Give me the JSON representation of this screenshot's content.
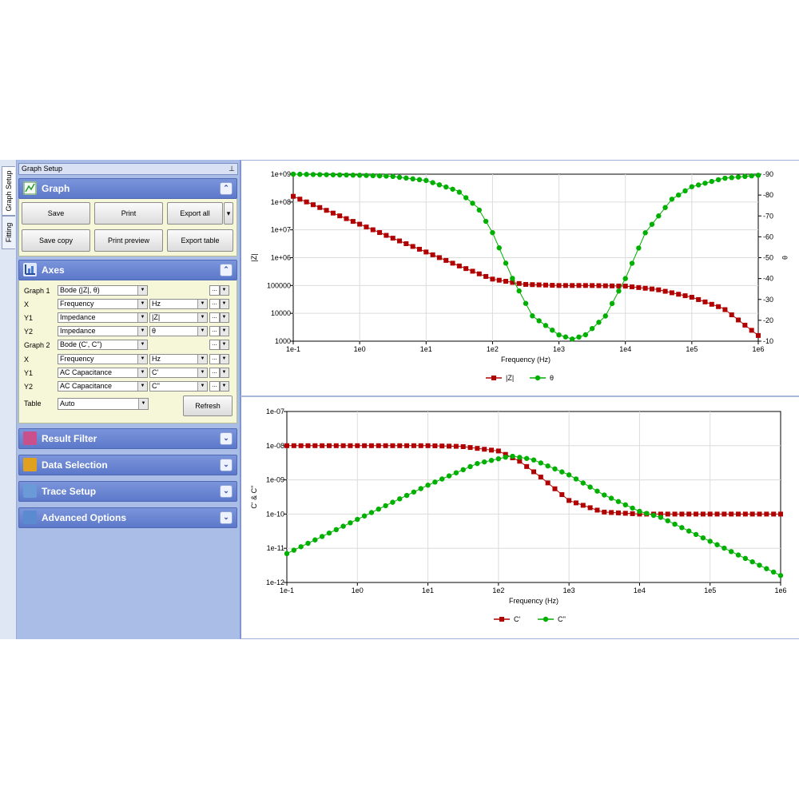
{
  "side_tabs": [
    "Graph Setup",
    "Fitting"
  ],
  "panel_title": "Graph Setup",
  "pin_glyph": "⊥",
  "graph_section": {
    "title": "Graph",
    "icon": "graph-icon",
    "buttons": [
      "Save",
      "Print",
      "Export all",
      "Save copy",
      "Print preview",
      "Export table"
    ]
  },
  "axes_section": {
    "title": "Axes",
    "icon": "axes-icon",
    "rows": [
      {
        "label": "Graph 1",
        "value": "Bode (|Z|, θ)",
        "unit": ""
      },
      {
        "label": "X",
        "value": "Frequency",
        "unit": "Hz"
      },
      {
        "label": "Y1",
        "value": "Impedance",
        "unit": "|Z|"
      },
      {
        "label": "Y2",
        "value": "Impedance",
        "unit": "θ"
      },
      {
        "label": "Graph 2",
        "value": "Bode (C', C'')",
        "unit": ""
      },
      {
        "label": "X",
        "value": "Frequency",
        "unit": "Hz"
      },
      {
        "label": "Y1",
        "value": "AC Capacitance",
        "unit": "C'"
      },
      {
        "label": "Y2",
        "value": "AC Capacitance",
        "unit": "C''"
      }
    ],
    "table_label": "Table",
    "table_value": "Auto",
    "refresh_label": "Refresh"
  },
  "collapsed_sections": [
    {
      "title": "Result Filter",
      "icon": "filter-icon"
    },
    {
      "title": "Data Selection",
      "icon": "data-selection-icon"
    },
    {
      "title": "Trace Setup",
      "icon": "trace-icon"
    },
    {
      "title": "Advanced Options",
      "icon": "advanced-options-icon"
    }
  ],
  "colors": {
    "red": "#b00000",
    "green": "#00b000",
    "grid": "#dcdcdc"
  },
  "chart_data": [
    {
      "type": "line",
      "xlabel": "Frequency (Hz)",
      "ylabel": "|Z|",
      "y2label": "θ",
      "x_scale": "log",
      "y_scale": "log",
      "xlim": [
        0.1,
        1000000
      ],
      "ylim": [
        1000,
        1000000000
      ],
      "y2lim": [
        -10,
        -90
      ],
      "x_ticks": [
        "1e-1",
        "1e0",
        "1e1",
        "1e2",
        "1e3",
        "1e4",
        "1e5",
        "1e6"
      ],
      "y_ticks": [
        "1000",
        "10000",
        "100000",
        "1e+06",
        "1e+07",
        "1e+08",
        "1e+09"
      ],
      "y2_ticks": [
        "-10",
        "-20",
        "-30",
        "-40",
        "-50",
        "-60",
        "-70",
        "-80",
        "-90"
      ],
      "grid": true,
      "legend": "bottom-center",
      "series": [
        {
          "name": "|Z|",
          "axis": "y",
          "marker": "square",
          "color": "#b00000",
          "x": [
            0.1,
            0.3,
            1,
            3,
            10,
            30,
            100,
            300,
            1000,
            3000,
            10000,
            30000,
            100000,
            300000,
            1000000
          ],
          "y": [
            160000000,
            53000000,
            16000000,
            5300000,
            1600000,
            530000,
            170000,
            110000,
            100000,
            100000,
            95000,
            72000,
            38000,
            15000,
            1600
          ]
        },
        {
          "name": "θ",
          "axis": "y2",
          "marker": "circle",
          "color": "#00b000",
          "x": [
            0.1,
            1,
            3,
            10,
            30,
            60,
            100,
            200,
            400,
            1000,
            1600,
            2500,
            5000,
            10000,
            20000,
            50000,
            100000,
            300000,
            1000000
          ],
          "y": [
            -90,
            -89.5,
            -89,
            -87,
            -82,
            -74,
            -62,
            -40,
            -22,
            -13,
            -11,
            -13,
            -22,
            -40,
            -62,
            -78,
            -84,
            -88,
            -89.5
          ]
        }
      ]
    },
    {
      "type": "line",
      "xlabel": "Frequency (Hz)",
      "ylabel": "C' & C''",
      "x_scale": "log",
      "y_scale": "log",
      "xlim": [
        0.1,
        1000000
      ],
      "ylim": [
        1e-12,
        1e-07
      ],
      "x_ticks": [
        "1e-1",
        "1e0",
        "1e1",
        "1e2",
        "1e3",
        "1e4",
        "1e5",
        "1e6"
      ],
      "y_ticks": [
        "1e-12",
        "1e-11",
        "1e-10",
        "1e-09",
        "1e-08",
        "1e-07"
      ],
      "grid": true,
      "legend": "bottom-center",
      "series": [
        {
          "name": "C'",
          "marker": "square",
          "color": "#b00000",
          "x": [
            0.1,
            1,
            10,
            30,
            100,
            200,
            400,
            1000,
            3000,
            10000,
            100000,
            1000000
          ],
          "y": [
            1e-08,
            1e-08,
            1e-08,
            9.5e-09,
            7e-09,
            3.5e-09,
            1.2e-09,
            2.5e-10,
            1.15e-10,
            1e-10,
            1e-10,
            1e-10
          ]
        },
        {
          "name": "C''",
          "marker": "circle",
          "color": "#00b000",
          "x": [
            0.1,
            1,
            10,
            50,
            150,
            300,
            1000,
            3000,
            10000,
            20000,
            100000,
            1000000
          ],
          "y": [
            7e-12,
            7e-11,
            7e-10,
            3e-09,
            5e-09,
            4e-09,
            1.4e-09,
            3.8e-10,
            1.2e-10,
            8e-11,
            1.6e-11,
            1.6e-12
          ]
        }
      ]
    }
  ]
}
